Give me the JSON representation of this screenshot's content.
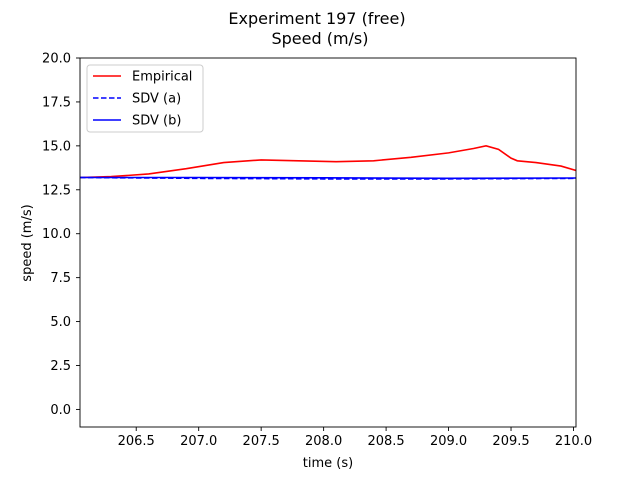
{
  "chart_data": {
    "type": "line",
    "title": "Experiment 197 (free)",
    "subtitle": "Speed (m/s)",
    "xlabel": "time (s)",
    "ylabel": "speed (m/s)",
    "xlim": [
      206.05,
      210.02
    ],
    "ylim": [
      -1.0,
      20.0
    ],
    "xticks": [
      206.5,
      207.0,
      207.5,
      208.0,
      208.5,
      209.0,
      209.5,
      210.0
    ],
    "xtick_labels": [
      "206.5",
      "207.0",
      "207.5",
      "208.0",
      "208.5",
      "209.0",
      "209.5",
      "210.0"
    ],
    "yticks": [
      0.0,
      2.5,
      5.0,
      7.5,
      10.0,
      12.5,
      15.0,
      17.5,
      20.0
    ],
    "ytick_labels": [
      "0.0",
      "2.5",
      "5.0",
      "7.5",
      "10.0",
      "12.5",
      "15.0",
      "17.5",
      "20.0"
    ],
    "grid": false,
    "legend_position": "top-left",
    "series": [
      {
        "name": "Empirical",
        "color": "#ff0000",
        "style": "solid",
        "x": [
          206.05,
          206.3,
          206.6,
          206.9,
          207.2,
          207.5,
          207.8,
          208.1,
          208.4,
          208.7,
          209.0,
          209.2,
          209.3,
          209.4,
          209.5,
          209.55,
          209.7,
          209.9,
          210.02
        ],
        "y": [
          13.2,
          13.25,
          13.4,
          13.7,
          14.05,
          14.2,
          14.15,
          14.1,
          14.15,
          14.35,
          14.6,
          14.85,
          15.0,
          14.8,
          14.3,
          14.15,
          14.05,
          13.85,
          13.6
        ]
      },
      {
        "name": "SDV (a)",
        "color": "#0000ff",
        "style": "dashed",
        "x": [
          206.05,
          207.0,
          208.0,
          209.0,
          210.02
        ],
        "y": [
          13.2,
          13.15,
          13.12,
          13.12,
          13.15
        ]
      },
      {
        "name": "SDV (b)",
        "color": "#0000ff",
        "style": "solid",
        "x": [
          206.05,
          207.0,
          208.0,
          209.0,
          210.02
        ],
        "y": [
          13.2,
          13.2,
          13.18,
          13.15,
          13.17
        ]
      }
    ]
  }
}
